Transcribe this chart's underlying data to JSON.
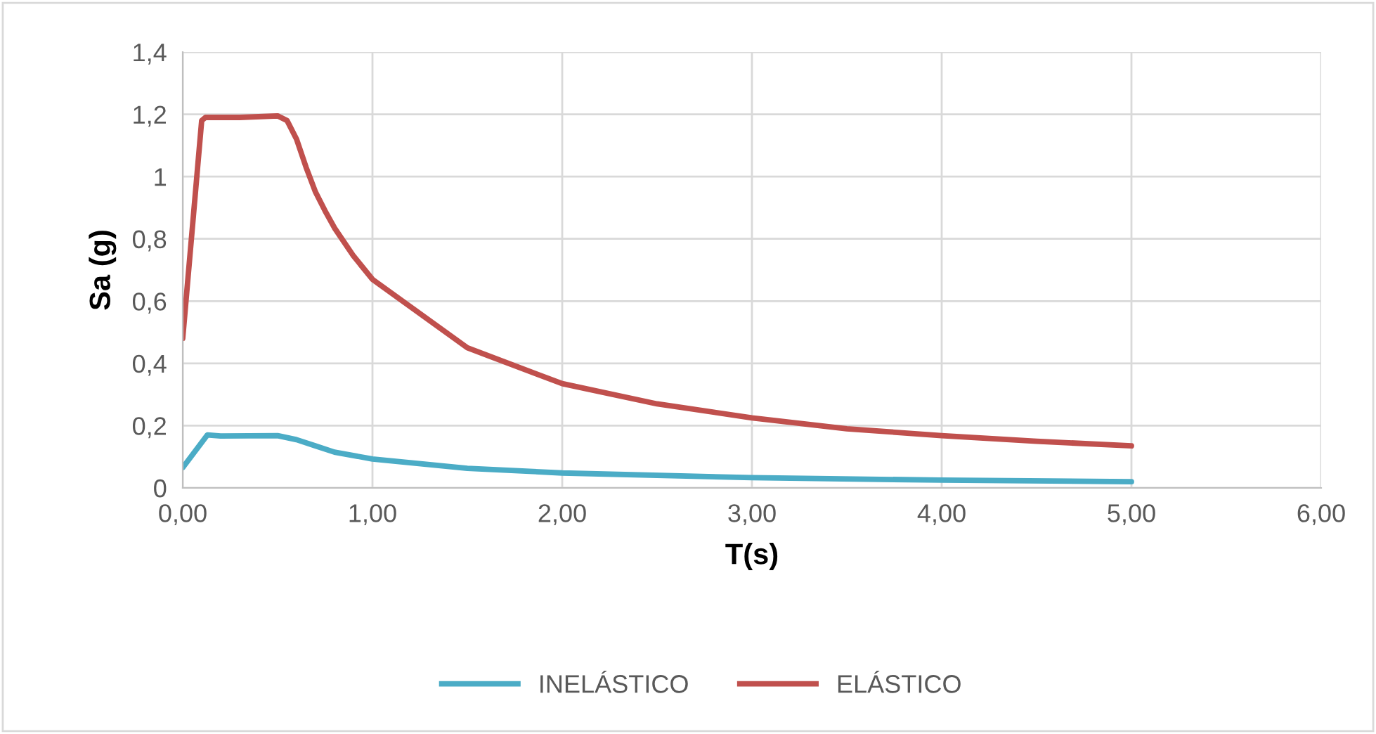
{
  "chart_data": {
    "type": "line",
    "xlabel": "T(s)",
    "ylabel": "Sa (g)",
    "xlim": [
      0,
      6
    ],
    "xticks": [
      {
        "value": 0,
        "label": "0,00"
      },
      {
        "value": 1,
        "label": "1,00"
      },
      {
        "value": 2,
        "label": "2,00"
      },
      {
        "value": 3,
        "label": "3,00"
      },
      {
        "value": 4,
        "label": "4,00"
      },
      {
        "value": 5,
        "label": "5,00"
      },
      {
        "value": 6,
        "label": "6,00"
      }
    ],
    "ylim": [
      0,
      1.4
    ],
    "yticks": [
      0,
      {
        "value": 0.2,
        "label": "0,2"
      },
      {
        "value": 0.4,
        "label": "0,4"
      },
      {
        "value": 0.6,
        "label": "0,6"
      },
      {
        "value": 0.8,
        "label": "0,8"
      },
      1,
      {
        "value": 1.2,
        "label": "1,2"
      },
      {
        "value": 1.4,
        "label": "1,4"
      }
    ],
    "grid": true,
    "legend": "bottom",
    "marker": "none",
    "line_style": "solid",
    "series": [
      {
        "name": "INELÁSTICO",
        "color": "#4bacc6",
        "x": [
          0,
          0.13,
          0.2,
          0.5,
          0.6,
          0.7,
          0.8,
          1.0,
          1.5,
          2,
          3,
          4,
          5
        ],
        "values": [
          0.065,
          0.17,
          0.167,
          0.168,
          0.155,
          0.135,
          0.115,
          0.093,
          0.063,
          0.048,
          0.033,
          0.025,
          0.02
        ]
      },
      {
        "name": "ELÁSTICO",
        "color": "#c0504d",
        "x": [
          0,
          0.1,
          0.12,
          0.3,
          0.5,
          0.55,
          0.6,
          0.65,
          0.7,
          0.75,
          0.8,
          0.9,
          1.0,
          1.5,
          2,
          2.5,
          3,
          3.5,
          4,
          4.5,
          5
        ],
        "values": [
          0.48,
          1.18,
          1.19,
          1.19,
          1.195,
          1.18,
          1.12,
          1.03,
          0.95,
          0.89,
          0.835,
          0.745,
          0.67,
          0.45,
          0.335,
          0.27,
          0.225,
          0.19,
          0.168,
          0.15,
          0.135
        ]
      }
    ]
  }
}
